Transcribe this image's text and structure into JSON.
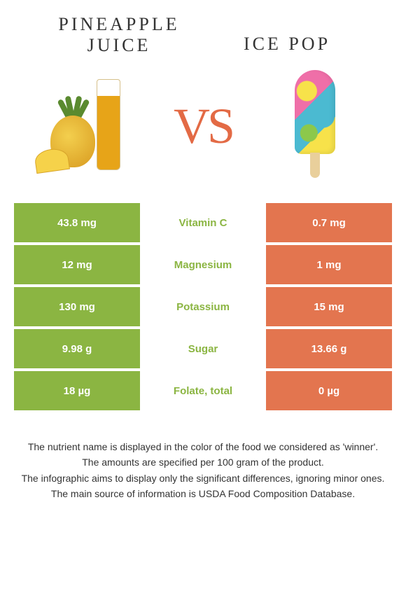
{
  "left_title": "PINEAPPLE JUICE",
  "right_title": "ICE POP",
  "vs_label": "VS",
  "colors": {
    "left_bg": "#8bb542",
    "right_bg": "#e3754f",
    "mid_text_left_win": "#8bb542",
    "mid_text_right_win": "#e3754f",
    "vs": "#e36a45",
    "page_bg": "#ffffff",
    "body_text": "#333333"
  },
  "table": {
    "type": "table",
    "rows": [
      {
        "nutrient": "Vitamin C",
        "left": "43.8 mg",
        "right": "0.7 mg",
        "winner": "left"
      },
      {
        "nutrient": "Magnesium",
        "left": "12 mg",
        "right": "1 mg",
        "winner": "left"
      },
      {
        "nutrient": "Potassium",
        "left": "130 mg",
        "right": "15 mg",
        "winner": "left"
      },
      {
        "nutrient": "Sugar",
        "left": "9.98 g",
        "right": "13.66 g",
        "winner": "left"
      },
      {
        "nutrient": "Folate, total",
        "left": "18 µg",
        "right": "0 µg",
        "winner": "left"
      }
    ]
  },
  "footer": [
    "The nutrient name is displayed in the color of the food we considered as 'winner'.",
    "The amounts are specified per 100 gram of the product.",
    "The infographic aims to display only the significant differences, ignoring minor ones.",
    "The main source of information is USDA Food Composition Database."
  ]
}
